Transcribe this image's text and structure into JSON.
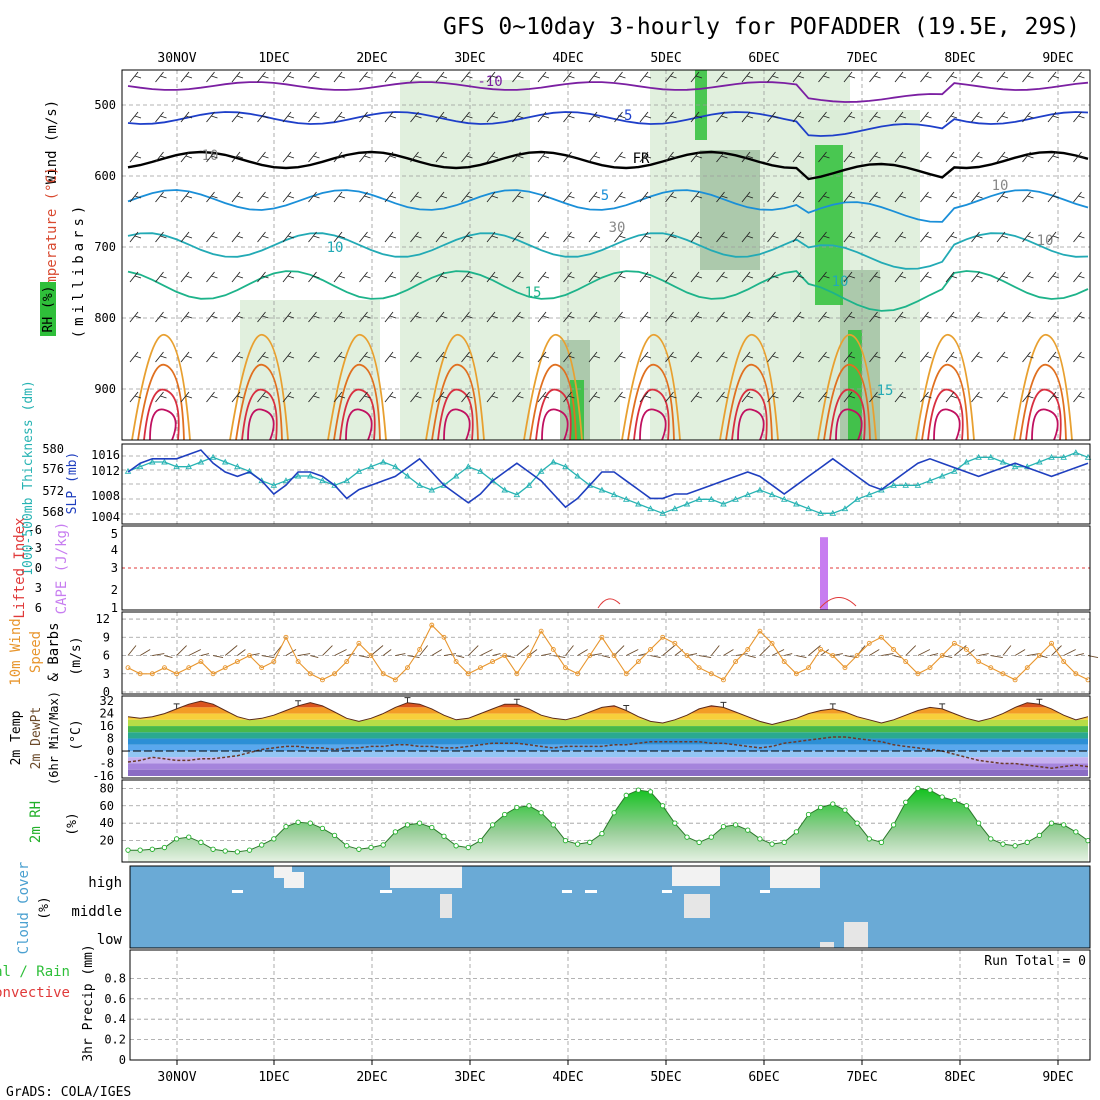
{
  "header": {
    "title": "GFS 0~10day 3-hourly for POFADDER (19.5E, 29S)",
    "footer": "GrADS: COLA/IGES"
  },
  "colors": {
    "rh_green": "#2fbf3a",
    "rh_light": "#d9ecd6",
    "frame": "#000000",
    "slp": "#1f3fbf",
    "thickness": "#27b3b3",
    "cape": "#c77df0",
    "lifted": "#e03a3a",
    "wind10m": "#e8962e",
    "barb": "#6b4a2a",
    "cloud_bg": "#6aaad6",
    "cloud_fill": "#f2f2f2",
    "rh2m": "#22b02a"
  },
  "time_axis": {
    "top_labels": [
      "30NOV",
      "1DEC",
      "2DEC",
      "3DEC",
      "4DEC",
      "5DEC",
      "6DEC",
      "7DEC",
      "8DEC",
      "9DEC"
    ],
    "bottom_labels": [
      "30NOV",
      "1DEC",
      "2DEC",
      "3DEC",
      "4DEC",
      "5DEC",
      "6DEC",
      "7DEC",
      "8DEC",
      "9DEC"
    ]
  },
  "panels": {
    "upper_air": {
      "ylabel_wind": "Wind (m/s)",
      "ylabel_temp": "Temperature (°C)",
      "ylabel_rh": "RH (%)",
      "ylabel_mb": "(millibars)",
      "yticks": [
        "500",
        "600",
        "700",
        "800",
        "900"
      ],
      "contour_labels": [
        "-10",
        "-5",
        "FR",
        "5",
        "10",
        "15",
        "10",
        "10",
        "15",
        "10",
        "10",
        "30"
      ]
    },
    "thickness_slp": {
      "ylabel_thk": "1000-500mb Thickness (dm)",
      "ylabel_slp": "SLP (mb)",
      "thk_ticks": [
        "580",
        "576",
        "572",
        "568"
      ],
      "slp_ticks": [
        "1016",
        "1012",
        "1008",
        "1004"
      ]
    },
    "cape_li": {
      "ylabel_li": "Lifted Index",
      "ylabel_cape": "CAPE (J/kg)",
      "li_ticks": [
        "-6",
        "-3",
        "0",
        "3",
        "6"
      ],
      "cape_ticks": [
        "5",
        "4",
        "3",
        "2",
        "1"
      ]
    },
    "wind10m": {
      "ylabel_1": "10m Wind",
      "ylabel_2": "Speed",
      "ylabel_3": "& Barbs",
      "ylabel_unit": "(m/s)",
      "yticks": [
        "12",
        "9",
        "6",
        "3",
        "0"
      ]
    },
    "temp2m": {
      "ylabel_1": "2m Temp",
      "ylabel_2": "2m DewPt",
      "ylabel_3": "(6hr Min/Max)",
      "ylabel_unit": "(°C)",
      "yticks": [
        "32",
        "24",
        "16",
        "8",
        "0",
        "-8",
        "-16"
      ]
    },
    "rh2m": {
      "ylabel": "2m RH",
      "unit": "(%)",
      "yticks": [
        "80",
        "60",
        "40",
        "20"
      ]
    },
    "cloud": {
      "ylabel": "Cloud Cover",
      "unit": "(%)",
      "levels": [
        "high",
        "middle",
        "low"
      ]
    },
    "precip": {
      "ylabel_1": "Total / Rain",
      "ylabel_2": "Convective",
      "ylabel_3": "3hr Precip (mm)",
      "run_total": "Run Total = 0",
      "yticks": [
        "0.8",
        "0.6",
        "0.4",
        "0.2",
        "0"
      ]
    }
  },
  "chart_data": [
    {
      "type": "line",
      "title": "1000-500mb Thickness and SLP",
      "series": [
        {
          "name": "SLP (mb)",
          "values": [
            1013,
            1015,
            1016,
            1016,
            1016,
            1017,
            1018,
            1015,
            1013,
            1012,
            1013,
            1011,
            1008,
            1010,
            1013,
            1013,
            1012,
            1010,
            1007,
            1009,
            1010,
            1011,
            1012,
            1014,
            1016,
            1013,
            1010,
            1008,
            1006,
            1008,
            1011,
            1013,
            1015,
            1013,
            1011,
            1008,
            1005,
            1007,
            1010,
            1013,
            1013,
            1011,
            1009,
            1007,
            1007,
            1008,
            1008,
            1009,
            1010,
            1011,
            1012,
            1013,
            1012,
            1010,
            1008,
            1010,
            1012,
            1014,
            1016,
            1014,
            1012,
            1010,
            1009,
            1011,
            1013,
            1015,
            1016,
            1015,
            1014,
            1013,
            1012,
            1013,
            1014,
            1015,
            1014,
            1013,
            1012,
            1013,
            1014,
            1015
          ]
        },
        {
          "name": "Thickness (dm)",
          "values": [
            576,
            577,
            578,
            578,
            577,
            577,
            578,
            579,
            578,
            577,
            576,
            574,
            573,
            574,
            575,
            575,
            574,
            573,
            574,
            576,
            577,
            578,
            577,
            575,
            573,
            572,
            573,
            575,
            577,
            576,
            574,
            572,
            571,
            573,
            576,
            578,
            577,
            575,
            573,
            572,
            571,
            570,
            569,
            568,
            567,
            568,
            569,
            570,
            570,
            569,
            570,
            571,
            572,
            571,
            570,
            569,
            568,
            567,
            567,
            568,
            570,
            571,
            572,
            573,
            573,
            573,
            574,
            575,
            576,
            578,
            579,
            579,
            578,
            577,
            577,
            578,
            579,
            579,
            580,
            579
          ]
        }
      ]
    },
    {
      "type": "bar",
      "title": "CAPE",
      "x": [
        "6DEC 15Z"
      ],
      "values": [
        5.1
      ]
    },
    {
      "type": "line",
      "title": "10m Wind Speed",
      "series": [
        {
          "name": "Speed (m/s)",
          "values": [
            4,
            3,
            3,
            4,
            3,
            4,
            5,
            3,
            4,
            5,
            6,
            4,
            5,
            9,
            5,
            3,
            2,
            3,
            5,
            8,
            6,
            3,
            2,
            4,
            7,
            11,
            9,
            5,
            3,
            4,
            5,
            6,
            3,
            6,
            10,
            7,
            4,
            3,
            6,
            9,
            6,
            3,
            5,
            7,
            9,
            8,
            6,
            4,
            3,
            2,
            5,
            7,
            10,
            8,
            5,
            3,
            4,
            7,
            6,
            4,
            6,
            8,
            9,
            7,
            5,
            3,
            4,
            6,
            8,
            7,
            5,
            4,
            3,
            2,
            4,
            6,
            8,
            5,
            3,
            2
          ]
        }
      ]
    },
    {
      "type": "line",
      "title": "2m Temp / DewPt",
      "series": [
        {
          "name": "2m Temp (°C)",
          "values": [
            22,
            21,
            22,
            24,
            27,
            30,
            32,
            30,
            26,
            22,
            20,
            21,
            23,
            26,
            29,
            31,
            29,
            25,
            21,
            19,
            21,
            24,
            28,
            31,
            30,
            27,
            23,
            20,
            21,
            24,
            27,
            30,
            30,
            27,
            23,
            21,
            20,
            22,
            25,
            28,
            29,
            26,
            22,
            19,
            18,
            20,
            23,
            27,
            29,
            28,
            25,
            22,
            19,
            17,
            19,
            21,
            24,
            26,
            27,
            25,
            22,
            20,
            18,
            20,
            23,
            26,
            28,
            27,
            24,
            21,
            19,
            21,
            24,
            28,
            31,
            30,
            27,
            23,
            20,
            22
          ]
        },
        {
          "name": "2m DewPt (°C)",
          "values": [
            -7,
            -6,
            -4,
            -5,
            -6,
            -6,
            -5,
            -5,
            -4,
            -3,
            -1,
            1,
            2,
            3,
            3,
            2,
            2,
            1,
            2,
            2,
            3,
            3,
            4,
            4,
            3,
            3,
            2,
            2,
            3,
            4,
            5,
            5,
            5,
            4,
            3,
            2,
            3,
            3,
            3,
            3,
            4,
            4,
            5,
            6,
            6,
            6,
            6,
            6,
            5,
            5,
            4,
            3,
            2,
            3,
            5,
            6,
            7,
            8,
            9,
            9,
            8,
            7,
            6,
            4,
            3,
            2,
            1,
            0,
            -2,
            -4,
            -6,
            -7,
            -8,
            -8,
            -9,
            -10,
            -11,
            -10,
            -9,
            -10
          ]
        }
      ]
    },
    {
      "type": "area",
      "title": "2m RH",
      "series": [
        {
          "name": "2m RH (%)",
          "values": [
            9,
            9,
            10,
            12,
            22,
            24,
            18,
            10,
            8,
            7,
            9,
            15,
            22,
            36,
            41,
            40,
            34,
            26,
            14,
            10,
            12,
            15,
            30,
            38,
            40,
            35,
            25,
            14,
            12,
            20,
            38,
            50,
            58,
            60,
            52,
            38,
            20,
            16,
            18,
            28,
            52,
            72,
            78,
            76,
            60,
            40,
            24,
            18,
            24,
            36,
            38,
            32,
            22,
            16,
            18,
            30,
            50,
            58,
            62,
            55,
            40,
            22,
            18,
            38,
            64,
            80,
            78,
            70,
            66,
            60,
            40,
            22,
            16,
            14,
            18,
            26,
            40,
            38,
            30,
            20
          ]
        }
      ]
    },
    {
      "type": "bar",
      "title": "3hr Precip",
      "ylim": [
        0,
        1
      ],
      "values": [
        0
      ]
    }
  ]
}
